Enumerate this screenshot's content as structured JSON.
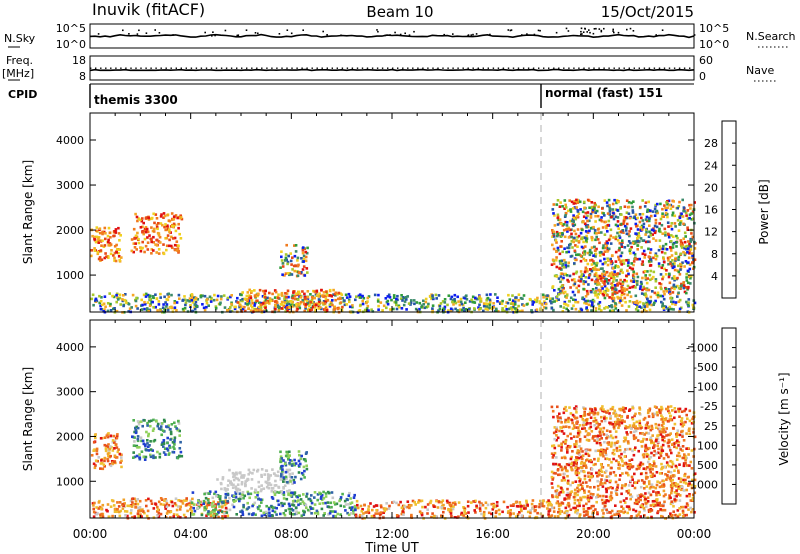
{
  "header": {
    "station": "Inuvik (fitACF)",
    "beam": "Beam 10",
    "date": "15/Oct/2015"
  },
  "aux_panels": {
    "nsky_label": "N.Sky",
    "nsearch_label": "N.Search",
    "nsky_ticks": [
      "10^5",
      "10^0"
    ],
    "nsearch_ticks": [
      "10^5",
      "10^0"
    ],
    "freq_label_top": "Freq.",
    "freq_label_unit": "[MHz]",
    "freq_ticks": [
      "18",
      "8"
    ],
    "nave_label": "Nave",
    "nave_ticks": [
      "60",
      "0"
    ],
    "cpid_label": "CPID",
    "cpid_segments": [
      {
        "name": "themis 3300",
        "start_hour": 0
      },
      {
        "name": "normal (fast) 151",
        "start_hour": 18
      }
    ]
  },
  "chart_data": [
    {
      "type": "heatmap",
      "title": "",
      "xlabel": "",
      "ylabel": "Slant Range [km]",
      "xlim": [
        0,
        24
      ],
      "ylim": [
        180,
        4600
      ],
      "yticks": [
        1000,
        2000,
        3000,
        4000
      ],
      "colorbar": {
        "label": "Power [dB]",
        "ticks": [
          "4",
          "8",
          "12",
          "16",
          "20",
          "24",
          "28"
        ],
        "colors": [
          "#0b1cf0",
          "#2555a8",
          "#3b8a6a",
          "#2f9c3a",
          "#a7c82a",
          "#f0d020",
          "#f5a524",
          "#f07a1e",
          "#e84a16",
          "#e01010"
        ]
      },
      "scatter_regions": [
        {
          "t0": 0.0,
          "t1": 10.6,
          "r0": 200,
          "r1": 620,
          "level": "mixed_low"
        },
        {
          "t0": 0.0,
          "t1": 1.2,
          "r0": 1300,
          "r1": 2100,
          "level": "high"
        },
        {
          "t0": 1.6,
          "t1": 3.6,
          "r0": 1500,
          "r1": 2400,
          "level": "high"
        },
        {
          "t0": 5.8,
          "t1": 10.0,
          "r0": 200,
          "r1": 700,
          "level": "high"
        },
        {
          "t0": 7.5,
          "t1": 8.6,
          "r0": 1000,
          "r1": 1700,
          "level": "mixed"
        },
        {
          "t0": 10.6,
          "t1": 24.0,
          "r0": 200,
          "r1": 600,
          "level": "mixed_low"
        },
        {
          "t0": 18.3,
          "t1": 24.0,
          "r0": 600,
          "r1": 2700,
          "level": "mixed"
        },
        {
          "t0": 20.0,
          "t1": 21.2,
          "r0": 500,
          "r1": 1100,
          "level": "high"
        }
      ]
    },
    {
      "type": "heatmap",
      "title": "",
      "xlabel": "Time UT",
      "ylabel": "Slant Range [km]",
      "xlim": [
        0,
        24
      ],
      "ylim": [
        180,
        4600
      ],
      "xticks": [
        "00:00",
        "04:00",
        "08:00",
        "12:00",
        "16:00",
        "20:00",
        "00:00"
      ],
      "yticks": [
        1000,
        2000,
        3000,
        4000
      ],
      "colorbar": {
        "label": "Velocity [m s⁻¹]",
        "ticks": [
          "1000",
          "500",
          "100",
          "25",
          "-25",
          "-100",
          "-500",
          "-1000"
        ],
        "colors": [
          "#1f3fd0",
          "#2e63a6",
          "#2f8a4c",
          "#4fb050",
          "#8fd05a",
          "#c8c8c8",
          "#c8c8c8",
          "#f0c030",
          "#f0a028",
          "#f07820",
          "#e8501a",
          "#e01010"
        ]
      },
      "scatter_regions": [
        {
          "t0": 0.0,
          "t1": 5.5,
          "r0": 200,
          "r1": 650,
          "level": "neg"
        },
        {
          "t0": 0.0,
          "t1": 1.2,
          "r0": 1300,
          "r1": 2100,
          "level": "neg"
        },
        {
          "t0": 1.6,
          "t1": 3.6,
          "r0": 1500,
          "r1": 2400,
          "level": "pos"
        },
        {
          "t0": 4.0,
          "t1": 10.5,
          "r0": 250,
          "r1": 800,
          "level": "pos"
        },
        {
          "t0": 5.0,
          "t1": 8.0,
          "r0": 800,
          "r1": 1300,
          "level": "zero"
        },
        {
          "t0": 7.5,
          "t1": 8.6,
          "r0": 1000,
          "r1": 1700,
          "level": "pos"
        },
        {
          "t0": 10.5,
          "t1": 24.0,
          "r0": 200,
          "r1": 600,
          "level": "neg"
        },
        {
          "t0": 18.3,
          "t1": 24.0,
          "r0": 600,
          "r1": 2700,
          "level": "neg"
        }
      ]
    }
  ]
}
